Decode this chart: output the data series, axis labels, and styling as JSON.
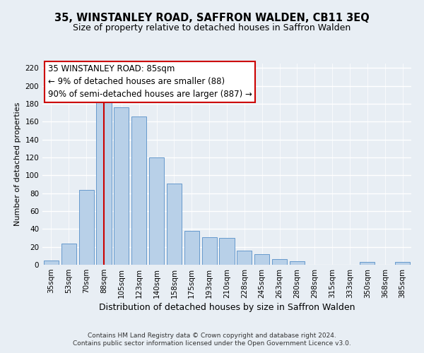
{
  "title": "35, WINSTANLEY ROAD, SAFFRON WALDEN, CB11 3EQ",
  "subtitle": "Size of property relative to detached houses in Saffron Walden",
  "xlabel": "Distribution of detached houses by size in Saffron Walden",
  "ylabel": "Number of detached properties",
  "bar_labels": [
    "35sqm",
    "53sqm",
    "70sqm",
    "88sqm",
    "105sqm",
    "123sqm",
    "140sqm",
    "158sqm",
    "175sqm",
    "193sqm",
    "210sqm",
    "228sqm",
    "245sqm",
    "263sqm",
    "280sqm",
    "298sqm",
    "315sqm",
    "333sqm",
    "350sqm",
    "368sqm",
    "385sqm"
  ],
  "bar_values": [
    5,
    24,
    84,
    184,
    176,
    166,
    120,
    91,
    38,
    31,
    30,
    16,
    12,
    6,
    4,
    0,
    0,
    0,
    3,
    0,
    3
  ],
  "bar_color": "#b8d0e8",
  "bar_edge_color": "#6699cc",
  "vline_color": "#cc0000",
  "vline_pos": 3.5,
  "ylim": [
    0,
    225
  ],
  "yticks": [
    0,
    20,
    40,
    60,
    80,
    100,
    120,
    140,
    160,
    180,
    200,
    220
  ],
  "ann_line1": "35 WINSTANLEY ROAD: 85sqm",
  "ann_line2": "← 9% of detached houses are smaller (88)",
  "ann_line3": "90% of semi-detached houses are larger (887) →",
  "footer_line1": "Contains HM Land Registry data © Crown copyright and database right 2024.",
  "footer_line2": "Contains public sector information licensed under the Open Government Licence v3.0.",
  "background_color": "#e8eef4",
  "title_fontsize": 10.5,
  "subtitle_fontsize": 9,
  "ylabel_fontsize": 8,
  "xlabel_fontsize": 9,
  "tick_fontsize": 7.5,
  "ann_fontsize": 8.5,
  "footer_fontsize": 6.5
}
